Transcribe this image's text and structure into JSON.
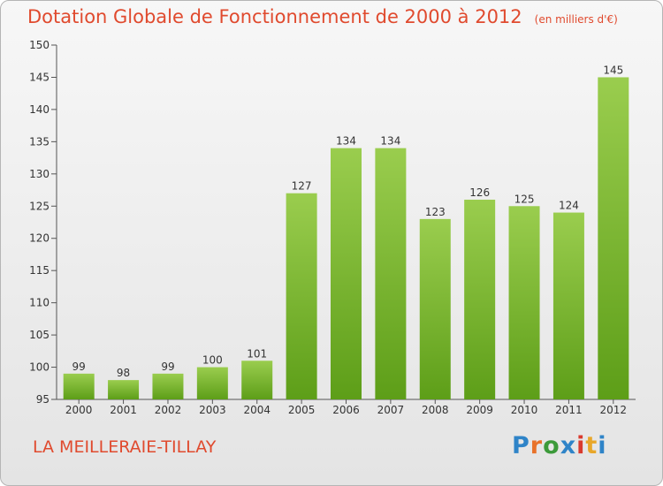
{
  "header": {
    "title": "Dotation Globale de Fonctionnement de 2000 à 2012",
    "subtitle": "(en milliers d'€)"
  },
  "footer": {
    "commune": "LA MEILLERAIE-TILLAY",
    "logo_text": "Proxiti",
    "logo_colors": [
      "#2f84c8",
      "#e8722a",
      "#3c9a3a",
      "#2f84c8",
      "#d93a2e",
      "#e8a72a",
      "#2f84c8"
    ]
  },
  "chart_data": {
    "type": "bar",
    "categories": [
      "2000",
      "2001",
      "2002",
      "2003",
      "2004",
      "2005",
      "2006",
      "2007",
      "2008",
      "2009",
      "2010",
      "2011",
      "2012"
    ],
    "values": [
      99,
      98,
      99,
      100,
      101,
      127,
      134,
      134,
      123,
      126,
      125,
      124,
      145
    ],
    "ylim": [
      95,
      150
    ],
    "yticks": [
      95,
      100,
      105,
      110,
      115,
      120,
      125,
      130,
      135,
      140,
      145,
      150
    ],
    "grid": false,
    "colors": {
      "bar_top": "#9acd4e",
      "bar_bottom": "#5d9e18",
      "axis": "#555555",
      "label": "#333333"
    }
  }
}
